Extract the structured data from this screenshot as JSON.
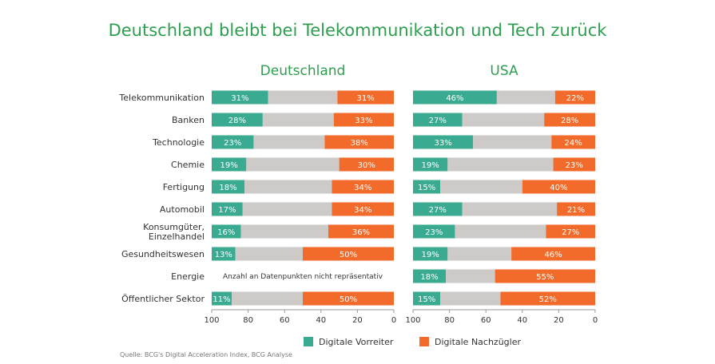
{
  "title": "Deutschland bleibt bei Telekommunikation und Tech zurück",
  "source": "Quelle: BCG's Digital Acceleration Index, BCG Analyse",
  "colors": {
    "leader": "#3aab91",
    "middle": "#cdcac7",
    "laggard": "#f26b2b",
    "title": "#2e9e4f",
    "text": "#333333"
  },
  "chart_data": {
    "type": "bar",
    "orientation": "horizontal-stacked-diverging",
    "title": "Deutschland bleibt bei Telekommunikation und Tech zurück",
    "categories": [
      "Telekommunikation",
      "Banken",
      "Technologie",
      "Chemie",
      "Fertigung",
      "Automobil",
      "Konsumgüter,\nEinzelhandel",
      "Gesundheitswesen",
      "Energie",
      "Öffentlicher Sektor"
    ],
    "xlim": [
      100,
      0
    ],
    "ticks": [
      "100",
      "80",
      "60",
      "40",
      "20",
      "0"
    ],
    "legend": {
      "position": "bottom",
      "items": [
        {
          "name": "Digitale Vorreiter",
          "color": "#3aab91"
        },
        {
          "name": "Digitale Nachzügler",
          "color": "#f26b2b"
        }
      ]
    },
    "panels": [
      {
        "name": "Deutschland",
        "vorreiter": [
          31,
          28,
          23,
          19,
          18,
          17,
          16,
          13,
          null,
          11
        ],
        "nachzuegler": [
          31,
          33,
          38,
          30,
          34,
          34,
          36,
          50,
          null,
          50
        ],
        "vorreiter_labels": [
          "31%",
          "28%",
          "23%",
          "19%",
          "18%",
          "17%",
          "16%",
          "13%",
          "",
          "11%"
        ],
        "nachzuegler_labels": [
          "31%",
          "33%",
          "38%",
          "30%",
          "34%",
          "34%",
          "36%",
          "50%",
          "",
          "50%"
        ],
        "note": {
          "category_index": 8,
          "text": "Anzahl an Datenpunkten nicht repräsentativ"
        }
      },
      {
        "name": "USA",
        "vorreiter": [
          46,
          27,
          33,
          19,
          15,
          27,
          23,
          19,
          18,
          15
        ],
        "nachzuegler": [
          22,
          28,
          24,
          23,
          40,
          21,
          27,
          46,
          55,
          52
        ],
        "vorreiter_labels": [
          "46%",
          "27%",
          "33%",
          "19%",
          "15%",
          "27%",
          "23%",
          "19%",
          "18%",
          "15%"
        ],
        "nachzuegler_labels": [
          "22%",
          "28%",
          "24%",
          "23%",
          "40%",
          "21%",
          "27%",
          "46%",
          "55%",
          "52%"
        ],
        "note": null
      }
    ]
  }
}
